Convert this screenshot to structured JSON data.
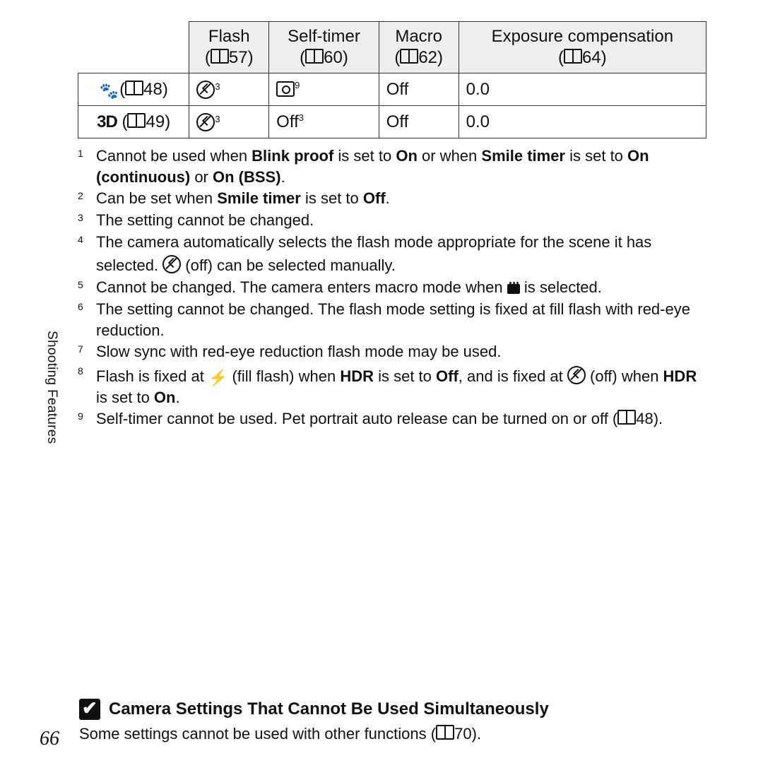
{
  "table": {
    "headers": [
      {
        "label": "Flash",
        "pageRef": "57"
      },
      {
        "label": "Self-timer",
        "pageRef": "60"
      },
      {
        "label": "Macro",
        "pageRef": "62"
      },
      {
        "label": "Exposure compensation",
        "pageRef": "64"
      }
    ],
    "rows": [
      {
        "modeIcon": "pet-portrait-icon",
        "modePageRef": "48",
        "flashIcon": "flash-off-icon",
        "flashSup": "3",
        "selfTimerIcon": "pet-release-icon",
        "selfTimerSup": "9",
        "macro": "Off",
        "exposure": "0.0"
      },
      {
        "modeLabel": "3D",
        "modePageRef": "49",
        "flashIcon": "flash-off-icon",
        "flashSup": "3",
        "selfTimerText": "Off",
        "selfTimerSup": "3",
        "macro": "Off",
        "exposure": "0.0"
      }
    ]
  },
  "notes": [
    {
      "n": "1",
      "parts": [
        {
          "t": "Cannot be used when "
        },
        {
          "b": "Blink proof"
        },
        {
          "t": " is set to "
        },
        {
          "b": "On"
        },
        {
          "t": " or when "
        },
        {
          "b": "Smile timer"
        },
        {
          "t": " is set to "
        },
        {
          "b": "On (continuous)"
        },
        {
          "t": " or "
        },
        {
          "b": "On (BSS)"
        },
        {
          "t": "."
        }
      ]
    },
    {
      "n": "2",
      "parts": [
        {
          "t": "Can be set when "
        },
        {
          "b": "Smile timer"
        },
        {
          "t": " is set to "
        },
        {
          "b": "Off"
        },
        {
          "t": "."
        }
      ]
    },
    {
      "n": "3",
      "parts": [
        {
          "t": "The setting cannot be changed."
        }
      ]
    },
    {
      "n": "4",
      "parts": [
        {
          "t": "The camera automatically selects the flash mode appropriate for the scene it has selected. "
        },
        {
          "icon": "flash-off-icon"
        },
        {
          "t": " (off) can be selected manually."
        }
      ]
    },
    {
      "n": "5",
      "parts": [
        {
          "t": "Cannot be changed. The camera enters macro mode when "
        },
        {
          "icon": "closeup-icon"
        },
        {
          "t": " is selected."
        }
      ]
    },
    {
      "n": "6",
      "parts": [
        {
          "t": "The setting cannot be changed. The flash mode setting is fixed at fill flash with red-eye reduction."
        }
      ]
    },
    {
      "n": "7",
      "parts": [
        {
          "t": "Slow sync with red-eye reduction flash mode may be used."
        }
      ]
    },
    {
      "n": "8",
      "parts": [
        {
          "t": "Flash is fixed at "
        },
        {
          "icon": "fill-flash-icon"
        },
        {
          "t": " (fill flash) when "
        },
        {
          "b": "HDR"
        },
        {
          "t": " is set to "
        },
        {
          "b": "Off"
        },
        {
          "t": ", and is fixed at "
        },
        {
          "icon": "flash-off-icon"
        },
        {
          "t": " (off) when "
        },
        {
          "b": "HDR"
        },
        {
          "t": " is set to "
        },
        {
          "b": "On"
        },
        {
          "t": "."
        }
      ]
    },
    {
      "n": "9",
      "parts": [
        {
          "t": "Self-timer cannot be used. Pet portrait auto release can be turned on or off ("
        },
        {
          "ref": "48"
        },
        {
          "t": ")."
        }
      ]
    }
  ],
  "sideLabel": "Shooting Features",
  "bottom": {
    "title": "Camera Settings That Cannot Be Used Simultaneously",
    "textBefore": "Some settings cannot be used with other functions (",
    "textRef": "70",
    "textAfter": ")."
  },
  "pageNumber": "66",
  "colors": {
    "headerBg": "#eeeeee",
    "border": "#333333",
    "text": "#111111",
    "bg": "#ffffff"
  }
}
